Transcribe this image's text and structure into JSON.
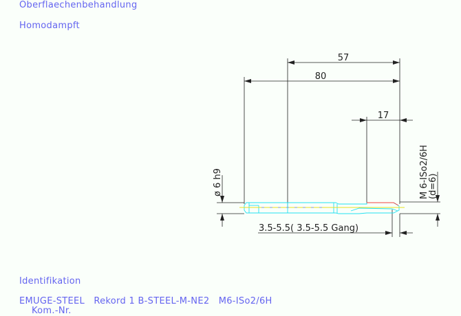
{
  "header": {
    "surface_label": "Oberflaechenbehandlung",
    "surface_value": "Homodampft"
  },
  "drawing": {
    "dim_57": "57",
    "dim_80": "80",
    "dim_17": "17",
    "dim_diameter": "ø 6 h9",
    "dim_thread": "M 6-ISo2/6H",
    "dim_thread_d": "(d=6)",
    "dim_chamfer": "3.5-5.5( 3.5-5.5 Gang)",
    "colors": {
      "tool_outline": "#22e0f0",
      "axis": "#e8e020",
      "thread": "#f04040",
      "dimension": "#222222",
      "text": "#6464f0"
    }
  },
  "footer": {
    "ident_label": "Identifikation",
    "ident_value": "EMUGE-STEEL   Rekord 1 B-STEEL-M-NE2   M6-ISo2/6H",
    "kom_label": "Kom.-Nr."
  }
}
